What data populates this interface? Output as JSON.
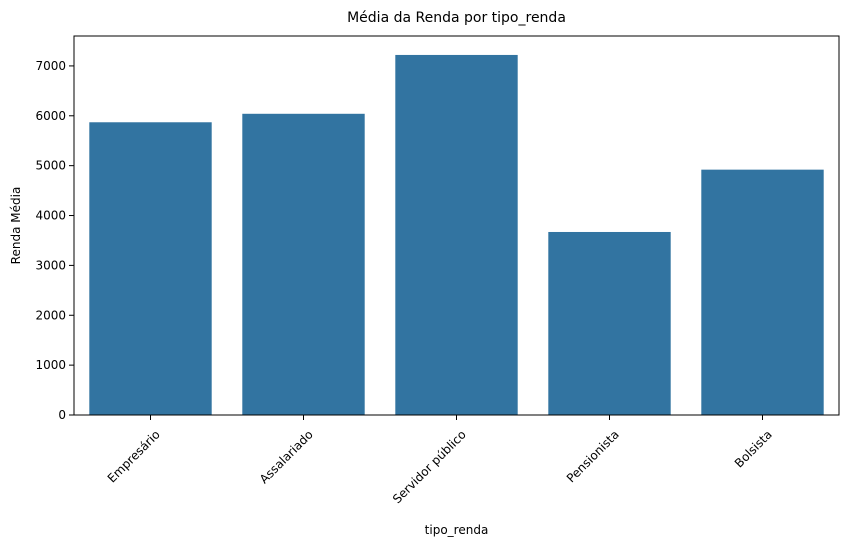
{
  "chart_data": {
    "type": "bar",
    "title": "Média da Renda por tipo_renda",
    "xlabel": "tipo_renda",
    "ylabel": "Renda Média",
    "categories": [
      "Empresário",
      "Assalariado",
      "Servidor público",
      "Pensionista",
      "Bolsista"
    ],
    "values": [
      5870,
      6040,
      7220,
      3670,
      4920
    ],
    "ylim": [
      0,
      7600
    ],
    "yticks": [
      0,
      1000,
      2000,
      3000,
      4000,
      5000,
      6000,
      7000
    ],
    "xtick_rotation": 45,
    "bar_color": "#3274a1",
    "grid": false,
    "legend": "none"
  }
}
